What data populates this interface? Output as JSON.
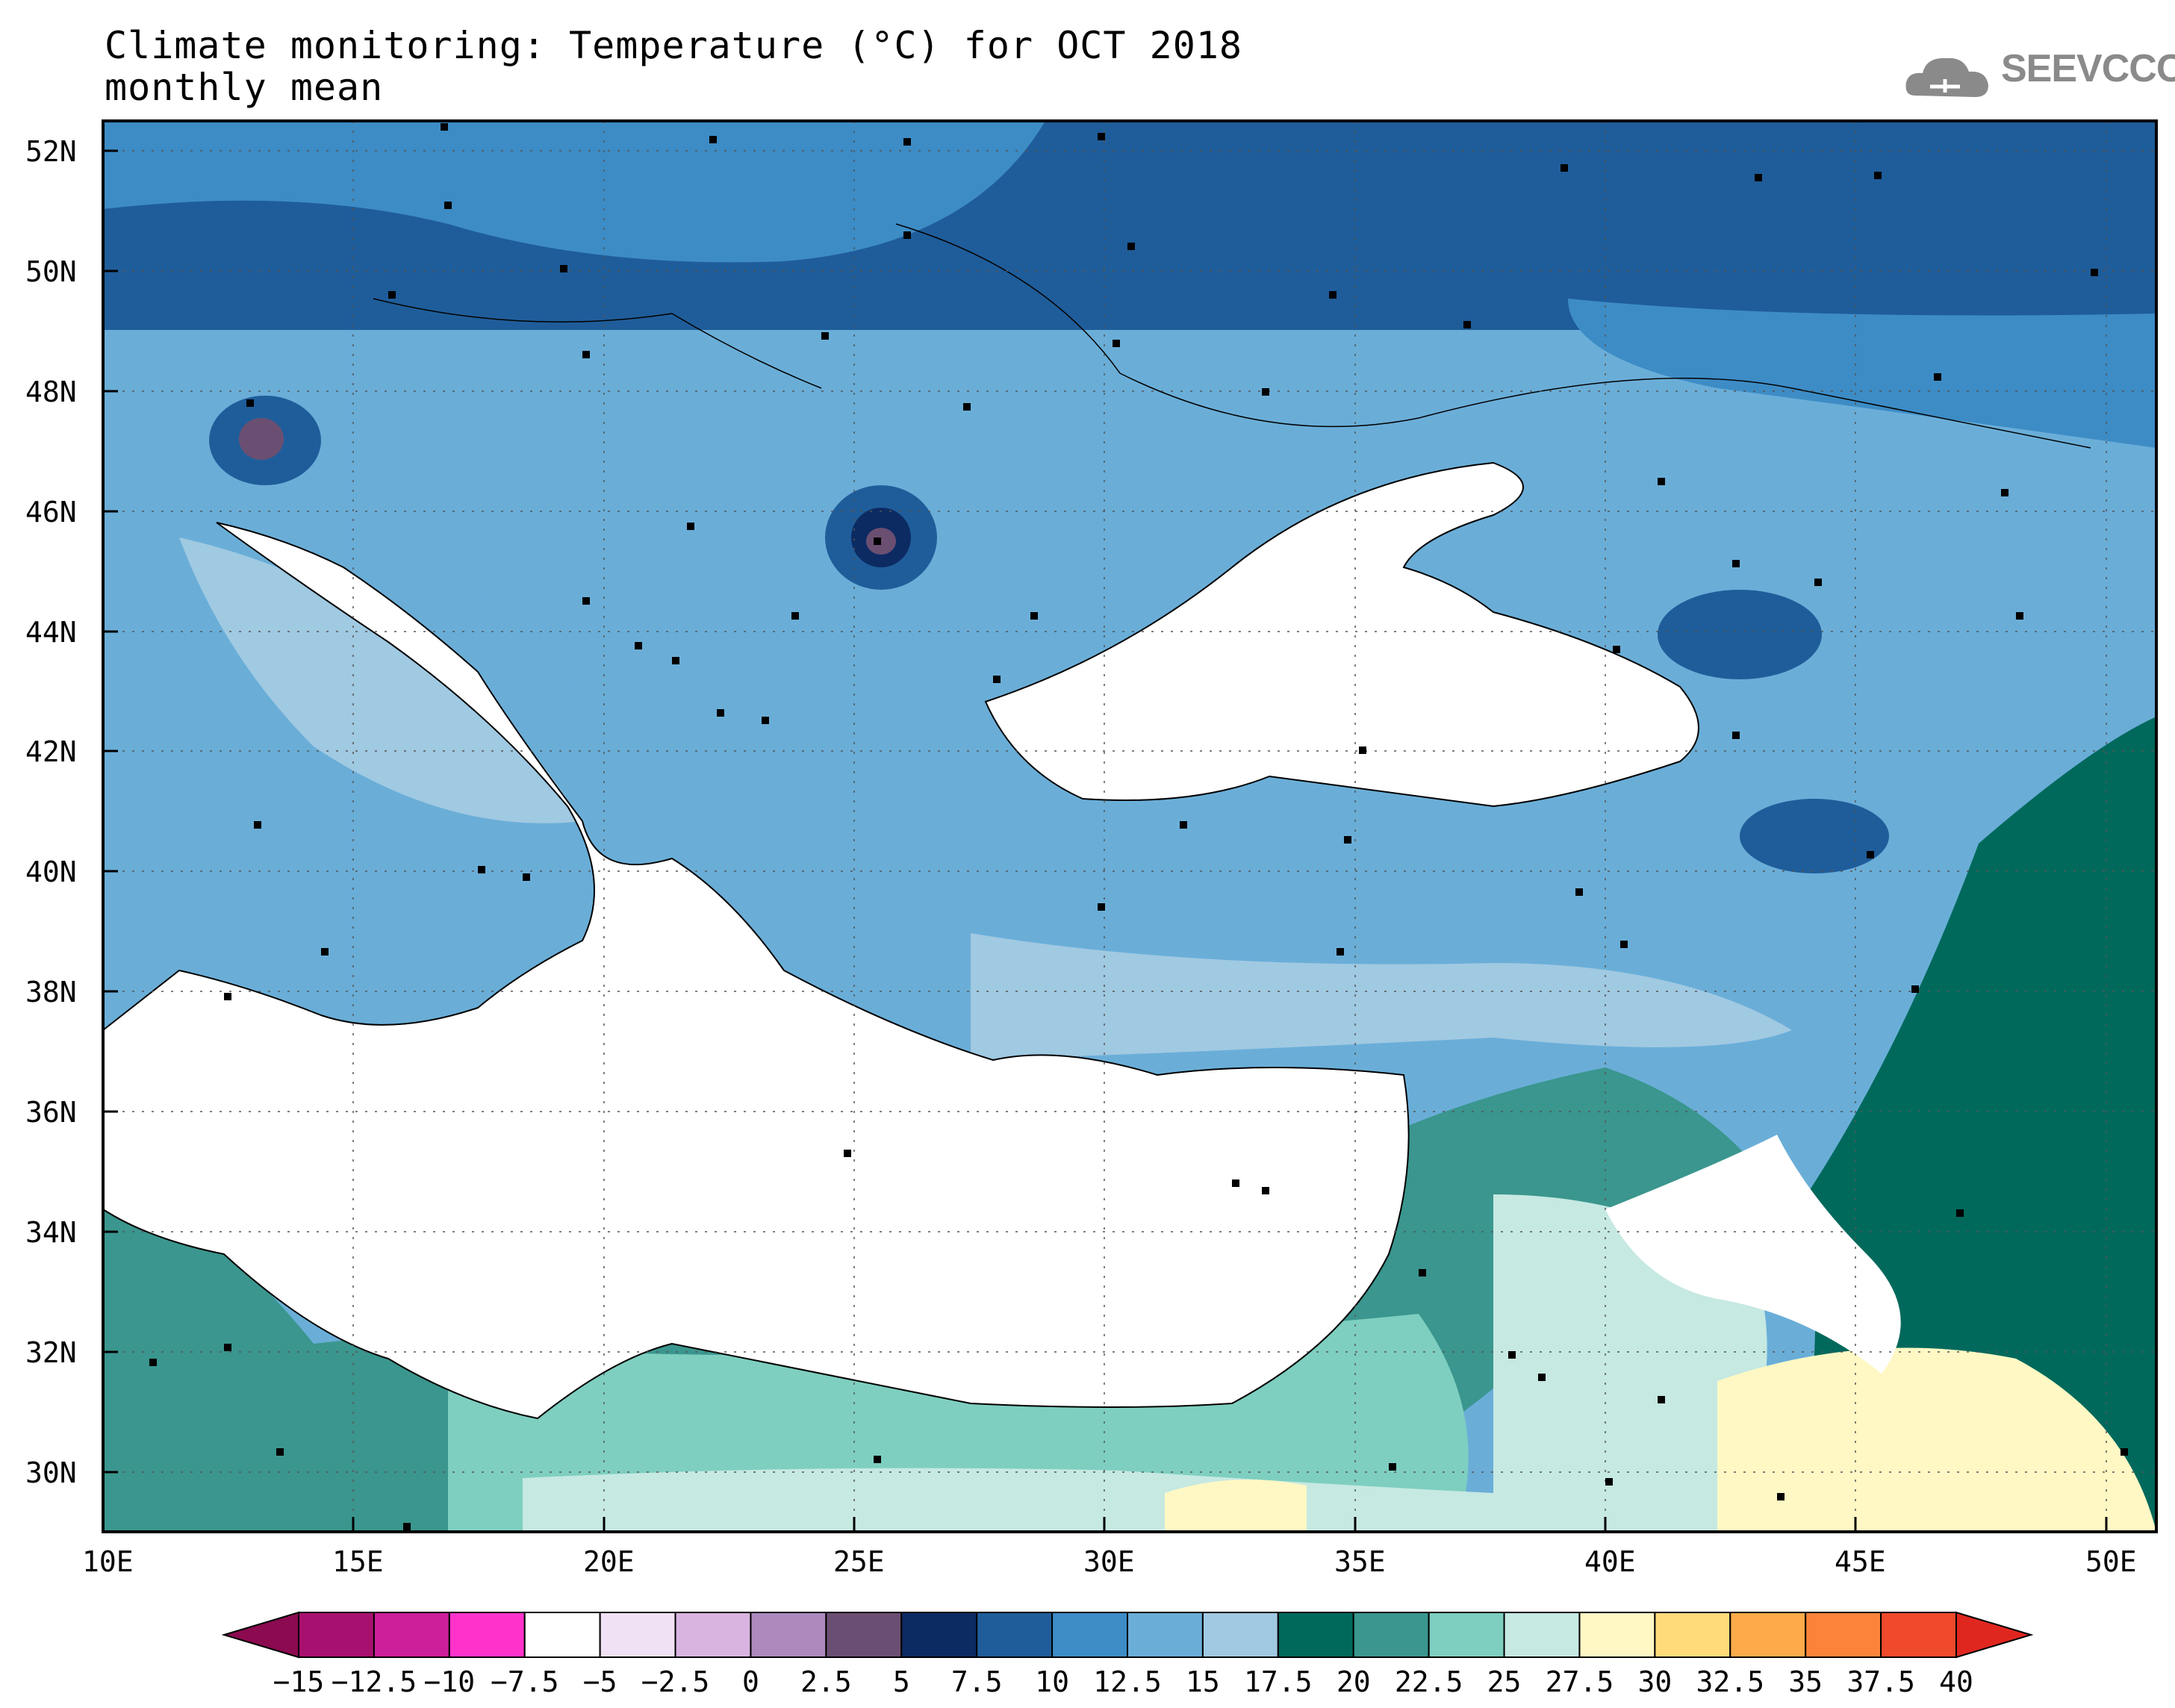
{
  "title": {
    "line1": "Climate monitoring: Temperature (°C) for OCT 2018",
    "line2": "monthly mean"
  },
  "logo": {
    "text": "SEEVCCC",
    "icon": "cloud-icon"
  },
  "map": {
    "lon_range": [
      10,
      51
    ],
    "lat_range": [
      29,
      52.5
    ],
    "x_ticks": [
      "10E",
      "15E",
      "20E",
      "25E",
      "30E",
      "35E",
      "40E",
      "45E",
      "50E"
    ],
    "y_ticks": [
      "30N",
      "32N",
      "34N",
      "36N",
      "38N",
      "40N",
      "42N",
      "44N",
      "46N",
      "48N",
      "50N",
      "52N"
    ],
    "grid": "dotted"
  },
  "colorbar": {
    "labels": [
      "−15",
      "−12.5",
      "−10",
      "−7.5",
      "−5",
      "−2.5",
      "0",
      "2.5",
      "5",
      "7.5",
      "10",
      "12.5",
      "15",
      "17.5",
      "20",
      "22.5",
      "25",
      "27.5",
      "30",
      "32.5",
      "35",
      "37.5",
      "40"
    ],
    "colors": [
      "#8b0a50",
      "#a8106f",
      "#cc1f9a",
      "#ff33cc",
      "#ffffff",
      "#f0e2f4",
      "#d9b4e1",
      "#ad89be",
      "#6b4f72",
      "#0c2b63",
      "#1f5d9a",
      "#3d8cc6",
      "#6aaed8",
      "#a0c9e2",
      "#00695c",
      "#3a968e",
      "#7ecfc0",
      "#c6e9e2",
      "#fff8c4",
      "#ffdb7a",
      "#fdab4a",
      "#fb843a",
      "#f04a2c",
      "#e0271f"
    ]
  },
  "chart_data": {
    "type": "heatmap",
    "variable": "Temperature (°C)",
    "period": "OCT 2018",
    "statistic": "monthly mean",
    "xlim": [
      10,
      51
    ],
    "ylim": [
      29,
      52.5
    ],
    "levels": [
      -15,
      -12.5,
      -10,
      -7.5,
      -5,
      -2.5,
      0,
      2.5,
      5,
      7.5,
      10,
      12.5,
      15,
      17.5,
      20,
      22.5,
      25,
      27.5,
      30,
      32.5,
      35,
      37.5,
      40
    ]
  }
}
